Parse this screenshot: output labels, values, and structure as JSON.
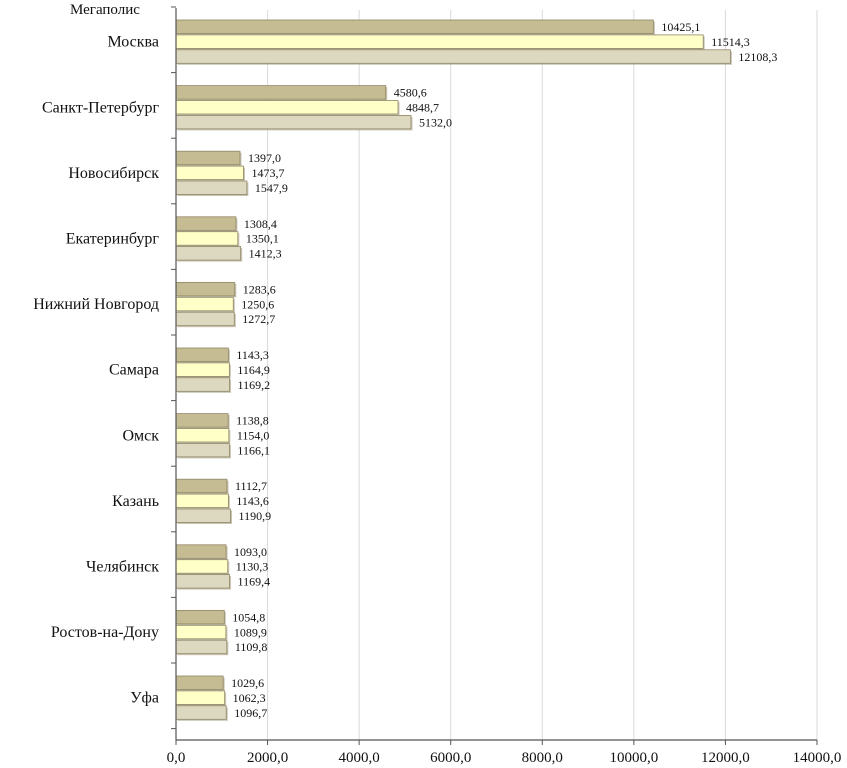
{
  "chart_data": {
    "type": "bar",
    "orientation": "horizontal",
    "y_axis_title": "Мегаполис",
    "categories": [
      "Москва",
      "Санкт-Петербург",
      "Новосибирск",
      "Екатеринбург",
      "Нижний Новгород",
      "Самара",
      "Омск",
      "Казань",
      "Челябинск",
      "Ростов-на-Дону",
      "Уфа"
    ],
    "series": [
      {
        "name": "series-1",
        "color": "#c6bc94",
        "values": [
          10425.1,
          4580.6,
          1397.0,
          1308.4,
          1283.6,
          1143.3,
          1138.8,
          1112.7,
          1093.0,
          1054.8,
          1029.6
        ],
        "labels": [
          "10425,1",
          "4580,6",
          "1397,0",
          "1308,4",
          "1283,6",
          "1143,3",
          "1138,8",
          "1112,7",
          "1093,0",
          "1054,8",
          "1029,6"
        ]
      },
      {
        "name": "series-2",
        "color": "#ffffc8",
        "values": [
          11514.3,
          4848.7,
          1473.7,
          1350.1,
          1250.6,
          1164.9,
          1154.0,
          1143.6,
          1130.3,
          1089.9,
          1062.3
        ],
        "labels": [
          "11514,3",
          "4848,7",
          "1473,7",
          "1350,1",
          "1250,6",
          "1164,9",
          "1154,0",
          "1143,6",
          "1130,3",
          "1089,9",
          "1062,3"
        ]
      },
      {
        "name": "series-3",
        "color": "#ddd8c0",
        "values": [
          12108.3,
          5132.0,
          1547.9,
          1412.3,
          1272.7,
          1169.2,
          1166.1,
          1190.9,
          1169.4,
          1109.8,
          1096.7
        ],
        "labels": [
          "12108,3",
          "5132,0",
          "1547,9",
          "1412,3",
          "1272,7",
          "1169,2",
          "1166,1",
          "1190,9",
          "1169,4",
          "1109,8",
          "1096,7"
        ]
      }
    ],
    "xlim": [
      0,
      14000
    ],
    "x_ticks": [
      0,
      2000,
      4000,
      6000,
      8000,
      10000,
      12000,
      14000
    ],
    "x_tick_labels": [
      "0,0",
      "2000,0",
      "4000,0",
      "6000,0",
      "8000,0",
      "10000,0",
      "12000,0",
      "14000,0"
    ],
    "grid": "vertical",
    "legend": "none"
  }
}
